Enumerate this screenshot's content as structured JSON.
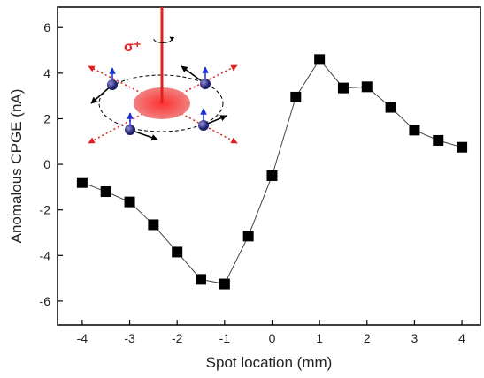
{
  "chart_data": {
    "type": "line",
    "xlabel": "Spot location (mm)",
    "ylabel": "Anomalous CPGE (nA)",
    "annotation": "σ⁺",
    "x": [
      -4,
      -3.5,
      -3,
      -2.5,
      -2,
      -1.5,
      -1,
      -0.5,
      0,
      0.5,
      1,
      1.5,
      2,
      2.5,
      3,
      3.5,
      4
    ],
    "series": [
      {
        "color": "#000000",
        "values": [
          -0.8,
          -1.2,
          -1.65,
          -2.65,
          -3.85,
          -5.05,
          -5.25,
          -3.15,
          -0.5,
          2.95,
          4.6,
          3.35,
          3.4,
          2.5,
          1.5,
          1.05,
          0.75
        ]
      }
    ],
    "xlim": [
      -4.52,
      4.39
    ],
    "ylim": [
      -7.05,
      6.9
    ],
    "xticks": [
      -4,
      -3,
      -2,
      -1,
      0,
      1,
      2,
      3,
      4
    ],
    "yticks": [
      -6,
      -4,
      -2,
      0,
      2,
      4,
      6
    ],
    "marker": "square"
  }
}
